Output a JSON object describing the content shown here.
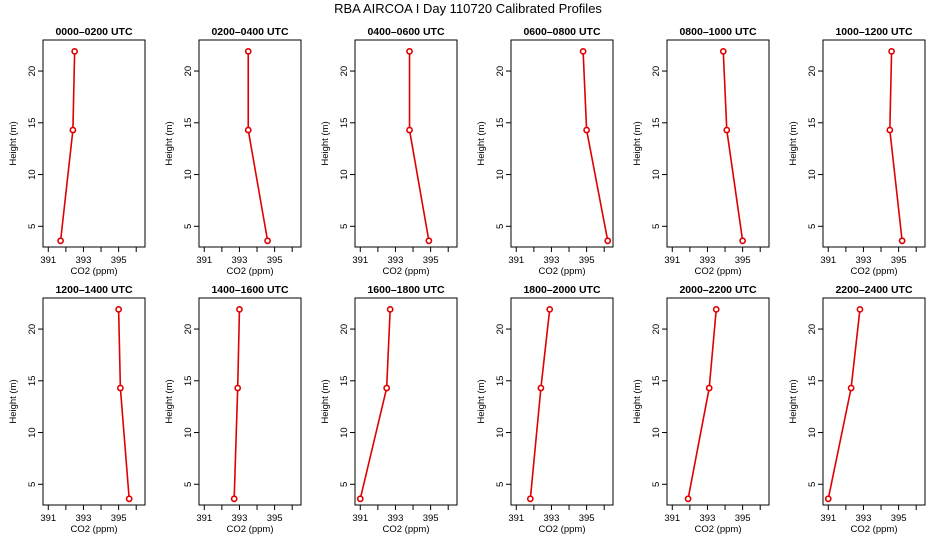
{
  "title": "RBA AIRCOA I  Day 110720  Calibrated Profiles",
  "colors": {
    "profile": "#e00000",
    "axes": "#000000",
    "background": "#ffffff"
  },
  "chart_data": [
    {
      "type": "line",
      "title": "0000–0200 UTC",
      "xlabel": "CO2 (ppm)",
      "ylabel": "Height (m)",
      "xlim": [
        390.7,
        396.5
      ],
      "ylim": [
        3,
        23
      ],
      "xticks": [
        "391",
        "393",
        "395"
      ],
      "yticks": [
        "5",
        "10",
        "15",
        "20"
      ],
      "x": [
        392.5,
        392.4,
        391.7
      ],
      "y": [
        21.9,
        14.3,
        3.6
      ]
    },
    {
      "type": "line",
      "title": "0200–0400 UTC",
      "xlabel": "CO2 (ppm)",
      "ylabel": "Height (m)",
      "xlim": [
        390.7,
        396.5
      ],
      "ylim": [
        3,
        23
      ],
      "xticks": [
        "391",
        "393",
        "395"
      ],
      "yticks": [
        "5",
        "10",
        "15",
        "20"
      ],
      "x": [
        393.5,
        393.5,
        394.6
      ],
      "y": [
        21.9,
        14.3,
        3.6
      ]
    },
    {
      "type": "line",
      "title": "0400–0600 UTC",
      "xlabel": "CO2 (ppm)",
      "ylabel": "Height (m)",
      "xlim": [
        390.7,
        396.5
      ],
      "ylim": [
        3,
        23
      ],
      "xticks": [
        "391",
        "393",
        "395"
      ],
      "yticks": [
        "5",
        "10",
        "15",
        "20"
      ],
      "x": [
        393.8,
        393.8,
        394.9
      ],
      "y": [
        21.9,
        14.3,
        3.6
      ]
    },
    {
      "type": "line",
      "title": "0600–0800 UTC",
      "xlabel": "CO2 (ppm)",
      "ylabel": "Height (m)",
      "xlim": [
        390.7,
        396.5
      ],
      "ylim": [
        3,
        23
      ],
      "xticks": [
        "391",
        "393",
        "395"
      ],
      "yticks": [
        "5",
        "10",
        "15",
        "20"
      ],
      "x": [
        394.8,
        395.0,
        396.2
      ],
      "y": [
        21.9,
        14.3,
        3.6
      ]
    },
    {
      "type": "line",
      "title": "0800–1000 UTC",
      "xlabel": "CO2 (ppm)",
      "ylabel": "Height (m)",
      "xlim": [
        390.7,
        396.5
      ],
      "ylim": [
        3,
        23
      ],
      "xticks": [
        "391",
        "393",
        "395"
      ],
      "yticks": [
        "5",
        "10",
        "15",
        "20"
      ],
      "x": [
        393.9,
        394.1,
        395.0
      ],
      "y": [
        21.9,
        14.3,
        3.6
      ]
    },
    {
      "type": "line",
      "title": "1000–1200 UTC",
      "xlabel": "CO2 (ppm)",
      "ylabel": "Height (m)",
      "xlim": [
        390.7,
        396.5
      ],
      "ylim": [
        3,
        23
      ],
      "xticks": [
        "391",
        "393",
        "395"
      ],
      "yticks": [
        "5",
        "10",
        "15",
        "20"
      ],
      "x": [
        394.6,
        394.5,
        395.2
      ],
      "y": [
        21.9,
        14.3,
        3.6
      ]
    },
    {
      "type": "line",
      "title": "1200–1400 UTC",
      "xlabel": "CO2 (ppm)",
      "ylabel": "Height (m)",
      "xlim": [
        390.7,
        396.5
      ],
      "ylim": [
        3,
        23
      ],
      "xticks": [
        "391",
        "393",
        "395"
      ],
      "yticks": [
        "5",
        "10",
        "15",
        "20"
      ],
      "x": [
        395.0,
        395.1,
        395.6
      ],
      "y": [
        21.9,
        14.3,
        3.6
      ]
    },
    {
      "type": "line",
      "title": "1400–1600 UTC",
      "xlabel": "CO2 (ppm)",
      "ylabel": "Height (m)",
      "xlim": [
        390.7,
        396.5
      ],
      "ylim": [
        3,
        23
      ],
      "xticks": [
        "391",
        "393",
        "395"
      ],
      "yticks": [
        "5",
        "10",
        "15",
        "20"
      ],
      "x": [
        393.0,
        392.9,
        392.7
      ],
      "y": [
        21.9,
        14.3,
        3.6
      ]
    },
    {
      "type": "line",
      "title": "1600–1800 UTC",
      "xlabel": "CO2 (ppm)",
      "ylabel": "Height (m)",
      "xlim": [
        390.7,
        396.5
      ],
      "ylim": [
        3,
        23
      ],
      "xticks": [
        "391",
        "393",
        "395"
      ],
      "yticks": [
        "5",
        "10",
        "15",
        "20"
      ],
      "x": [
        392.7,
        392.5,
        391.0
      ],
      "y": [
        21.9,
        14.3,
        3.6
      ]
    },
    {
      "type": "line",
      "title": "1800–2000 UTC",
      "xlabel": "CO2 (ppm)",
      "ylabel": "Height (m)",
      "xlim": [
        390.7,
        396.5
      ],
      "ylim": [
        3,
        23
      ],
      "xticks": [
        "391",
        "393",
        "395"
      ],
      "yticks": [
        "5",
        "10",
        "15",
        "20"
      ],
      "x": [
        392.9,
        392.4,
        391.8
      ],
      "y": [
        21.9,
        14.3,
        3.6
      ]
    },
    {
      "type": "line",
      "title": "2000–2200 UTC",
      "xlabel": "CO2 (ppm)",
      "ylabel": "Height (m)",
      "xlim": [
        390.7,
        396.5
      ],
      "ylim": [
        3,
        23
      ],
      "xticks": [
        "391",
        "393",
        "395"
      ],
      "yticks": [
        "5",
        "10",
        "15",
        "20"
      ],
      "x": [
        393.5,
        393.1,
        391.9
      ],
      "y": [
        21.9,
        14.3,
        3.6
      ]
    },
    {
      "type": "line",
      "title": "2200–2400 UTC",
      "xlabel": "CO2 (ppm)",
      "ylabel": "Height (m)",
      "xlim": [
        390.7,
        396.5
      ],
      "ylim": [
        3,
        23
      ],
      "xticks": [
        "391",
        "393",
        "395"
      ],
      "yticks": [
        "5",
        "10",
        "15",
        "20"
      ],
      "x": [
        392.8,
        392.3,
        391.0
      ],
      "y": [
        21.9,
        14.3,
        3.6
      ]
    }
  ]
}
